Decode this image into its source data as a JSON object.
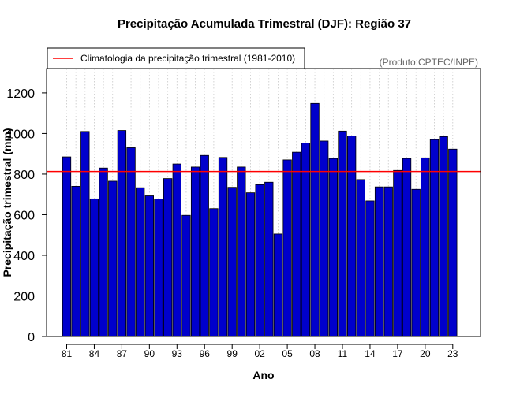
{
  "chart_data": {
    "type": "bar",
    "title": "Precipitação Acumulada Trimestral (DJF): Região 37",
    "xlabel": "Ano",
    "ylabel": "Precipitação trimestral (mm)",
    "source_note": "(Produto:CPTEC/INPE)",
    "categories": [
      "1981",
      "1982",
      "1983",
      "1984",
      "1985",
      "1986",
      "1987",
      "1988",
      "1989",
      "1990",
      "1991",
      "1992",
      "1993",
      "1994",
      "1995",
      "1996",
      "1997",
      "1998",
      "1999",
      "2000",
      "2001",
      "2002",
      "2003",
      "2004",
      "2005",
      "2006",
      "2007",
      "2008",
      "2009",
      "2010",
      "2011",
      "2012",
      "2013",
      "2014",
      "2015",
      "2016",
      "2017",
      "2018",
      "2019",
      "2020",
      "2021",
      "2022",
      "2023"
    ],
    "values": [
      885,
      740,
      1010,
      678,
      830,
      765,
      1015,
      930,
      733,
      693,
      677,
      778,
      850,
      597,
      835,
      892,
      630,
      882,
      735,
      835,
      708,
      748,
      760,
      505,
      870,
      908,
      953,
      1148,
      963,
      877,
      1012,
      988,
      773,
      668,
      737,
      737,
      818,
      877,
      725,
      880,
      970,
      985,
      923
    ],
    "x_tick_labels": [
      "81",
      "84",
      "87",
      "90",
      "93",
      "96",
      "99",
      "02",
      "05",
      "08",
      "11",
      "14",
      "17",
      "20",
      "23"
    ],
    "y_ticks": [
      0,
      200,
      400,
      600,
      800,
      1000,
      1200
    ],
    "ylim": [
      0,
      1320
    ],
    "bar_color": "#0000cc",
    "reference_line": {
      "label": "Climatologia da precipitação trimestral (1981-2010)",
      "value": 813,
      "color": "#ff0000"
    },
    "legend_position": "top-left",
    "grid": "vertical dotted"
  }
}
